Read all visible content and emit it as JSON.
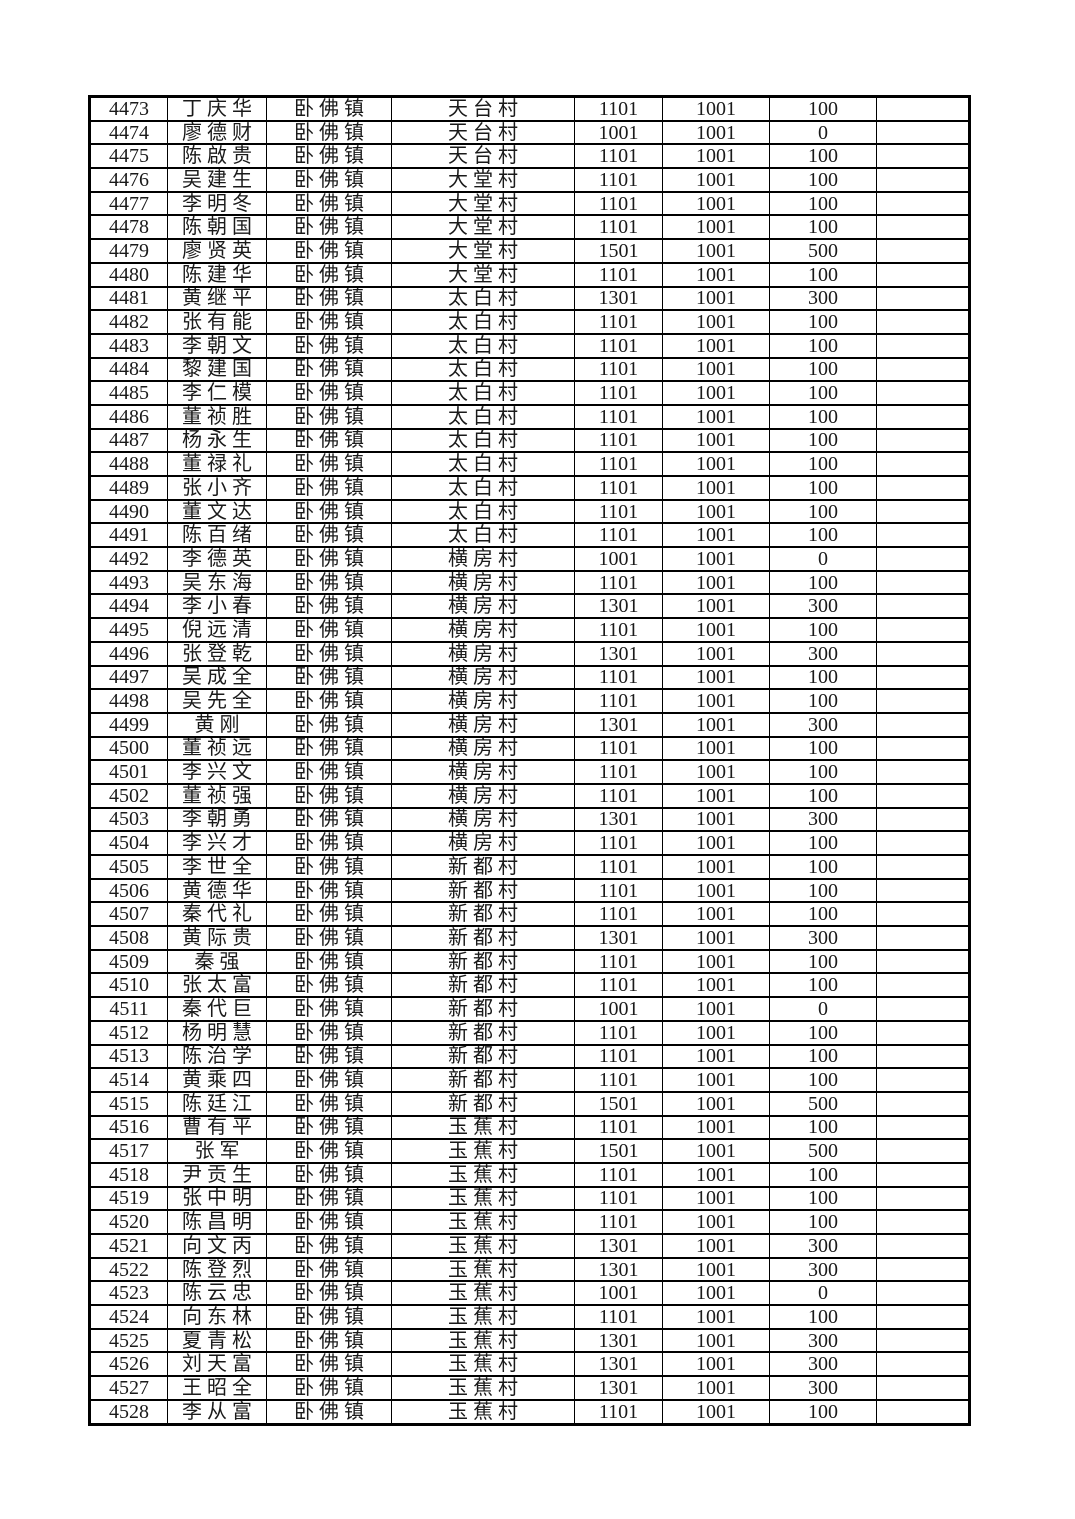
{
  "document": {
    "type": "personnel-subsidy-table",
    "town_repeated_value": "卧佛镇",
    "villages_in_view": [
      "天台村",
      "大堂村",
      "太白村",
      "横房村",
      "新都村",
      "玉蕉村"
    ],
    "first_serial": "4473",
    "last_serial": "4528",
    "row_count": 56,
    "border_color": "#000000",
    "text_color": "#1a1a1a",
    "background_color": "#ffffff"
  },
  "rows": [
    [
      "4473",
      "丁庆华",
      "卧佛镇",
      "天台村",
      "1101",
      "1001",
      "100"
    ],
    [
      "4474",
      "廖德财",
      "卧佛镇",
      "天台村",
      "1001",
      "1001",
      "0"
    ],
    [
      "4475",
      "陈啟贵",
      "卧佛镇",
      "天台村",
      "1101",
      "1001",
      "100"
    ],
    [
      "4476",
      "吴建生",
      "卧佛镇",
      "大堂村",
      "1101",
      "1001",
      "100"
    ],
    [
      "4477",
      "李明冬",
      "卧佛镇",
      "大堂村",
      "1101",
      "1001",
      "100"
    ],
    [
      "4478",
      "陈朝国",
      "卧佛镇",
      "大堂村",
      "1101",
      "1001",
      "100"
    ],
    [
      "4479",
      "廖贤英",
      "卧佛镇",
      "大堂村",
      "1501",
      "1001",
      "500"
    ],
    [
      "4480",
      "陈建华",
      "卧佛镇",
      "大堂村",
      "1101",
      "1001",
      "100"
    ],
    [
      "4481",
      "黄继平",
      "卧佛镇",
      "太白村",
      "1301",
      "1001",
      "300"
    ],
    [
      "4482",
      "张有能",
      "卧佛镇",
      "太白村",
      "1101",
      "1001",
      "100"
    ],
    [
      "4483",
      "李朝文",
      "卧佛镇",
      "太白村",
      "1101",
      "1001",
      "100"
    ],
    [
      "4484",
      "黎建国",
      "卧佛镇",
      "太白村",
      "1101",
      "1001",
      "100"
    ],
    [
      "4485",
      "李仁模",
      "卧佛镇",
      "太白村",
      "1101",
      "1001",
      "100"
    ],
    [
      "4486",
      "董祯胜",
      "卧佛镇",
      "太白村",
      "1101",
      "1001",
      "100"
    ],
    [
      "4487",
      "杨永生",
      "卧佛镇",
      "太白村",
      "1101",
      "1001",
      "100"
    ],
    [
      "4488",
      "董禄礼",
      "卧佛镇",
      "太白村",
      "1101",
      "1001",
      "100"
    ],
    [
      "4489",
      "张小齐",
      "卧佛镇",
      "太白村",
      "1101",
      "1001",
      "100"
    ],
    [
      "4490",
      "董文达",
      "卧佛镇",
      "太白村",
      "1101",
      "1001",
      "100"
    ],
    [
      "4491",
      "陈百绪",
      "卧佛镇",
      "太白村",
      "1101",
      "1001",
      "100"
    ],
    [
      "4492",
      "李德英",
      "卧佛镇",
      "横房村",
      "1001",
      "1001",
      "0"
    ],
    [
      "4493",
      "吴东海",
      "卧佛镇",
      "横房村",
      "1101",
      "1001",
      "100"
    ],
    [
      "4494",
      "李小春",
      "卧佛镇",
      "横房村",
      "1301",
      "1001",
      "300"
    ],
    [
      "4495",
      "倪远清",
      "卧佛镇",
      "横房村",
      "1101",
      "1001",
      "100"
    ],
    [
      "4496",
      "张登乾",
      "卧佛镇",
      "横房村",
      "1301",
      "1001",
      "300"
    ],
    [
      "4497",
      "吴成全",
      "卧佛镇",
      "横房村",
      "1101",
      "1001",
      "100"
    ],
    [
      "4498",
      "吴先全",
      "卧佛镇",
      "横房村",
      "1101",
      "1001",
      "100"
    ],
    [
      "4499",
      "黄刚",
      "卧佛镇",
      "横房村",
      "1301",
      "1001",
      "300"
    ],
    [
      "4500",
      "董祯远",
      "卧佛镇",
      "横房村",
      "1101",
      "1001",
      "100"
    ],
    [
      "4501",
      "李兴文",
      "卧佛镇",
      "横房村",
      "1101",
      "1001",
      "100"
    ],
    [
      "4502",
      "董祯强",
      "卧佛镇",
      "横房村",
      "1101",
      "1001",
      "100"
    ],
    [
      "4503",
      "李朝勇",
      "卧佛镇",
      "横房村",
      "1301",
      "1001",
      "300"
    ],
    [
      "4504",
      "李兴才",
      "卧佛镇",
      "横房村",
      "1101",
      "1001",
      "100"
    ],
    [
      "4505",
      "李世全",
      "卧佛镇",
      "新都村",
      "1101",
      "1001",
      "100"
    ],
    [
      "4506",
      "黄德华",
      "卧佛镇",
      "新都村",
      "1101",
      "1001",
      "100"
    ],
    [
      "4507",
      "秦代礼",
      "卧佛镇",
      "新都村",
      "1101",
      "1001",
      "100"
    ],
    [
      "4508",
      "黄际贵",
      "卧佛镇",
      "新都村",
      "1301",
      "1001",
      "300"
    ],
    [
      "4509",
      "秦强",
      "卧佛镇",
      "新都村",
      "1101",
      "1001",
      "100"
    ],
    [
      "4510",
      "张太富",
      "卧佛镇",
      "新都村",
      "1101",
      "1001",
      "100"
    ],
    [
      "4511",
      "秦代巨",
      "卧佛镇",
      "新都村",
      "1001",
      "1001",
      "0"
    ],
    [
      "4512",
      "杨明慧",
      "卧佛镇",
      "新都村",
      "1101",
      "1001",
      "100"
    ],
    [
      "4513",
      "陈治学",
      "卧佛镇",
      "新都村",
      "1101",
      "1001",
      "100"
    ],
    [
      "4514",
      "黄乘四",
      "卧佛镇",
      "新都村",
      "1101",
      "1001",
      "100"
    ],
    [
      "4515",
      "陈廷江",
      "卧佛镇",
      "新都村",
      "1501",
      "1001",
      "500"
    ],
    [
      "4516",
      "曹有平",
      "卧佛镇",
      "玉蕉村",
      "1101",
      "1001",
      "100"
    ],
    [
      "4517",
      "张军",
      "卧佛镇",
      "玉蕉村",
      "1501",
      "1001",
      "500"
    ],
    [
      "4518",
      "尹贡生",
      "卧佛镇",
      "玉蕉村",
      "1101",
      "1001",
      "100"
    ],
    [
      "4519",
      "张中明",
      "卧佛镇",
      "玉蕉村",
      "1101",
      "1001",
      "100"
    ],
    [
      "4520",
      "陈昌明",
      "卧佛镇",
      "玉蕉村",
      "1101",
      "1001",
      "100"
    ],
    [
      "4521",
      "向文丙",
      "卧佛镇",
      "玉蕉村",
      "1301",
      "1001",
      "300"
    ],
    [
      "4522",
      "陈登烈",
      "卧佛镇",
      "玉蕉村",
      "1301",
      "1001",
      "300"
    ],
    [
      "4523",
      "陈云忠",
      "卧佛镇",
      "玉蕉村",
      "1001",
      "1001",
      "0"
    ],
    [
      "4524",
      "向东林",
      "卧佛镇",
      "玉蕉村",
      "1101",
      "1001",
      "100"
    ],
    [
      "4525",
      "夏青松",
      "卧佛镇",
      "玉蕉村",
      "1301",
      "1001",
      "300"
    ],
    [
      "4526",
      "刘天富",
      "卧佛镇",
      "玉蕉村",
      "1301",
      "1001",
      "300"
    ],
    [
      "4527",
      "王昭全",
      "卧佛镇",
      "玉蕉村",
      "1301",
      "1001",
      "300"
    ],
    [
      "4528",
      "李从富",
      "卧佛镇",
      "玉蕉村",
      "1101",
      "1001",
      "100"
    ]
  ]
}
